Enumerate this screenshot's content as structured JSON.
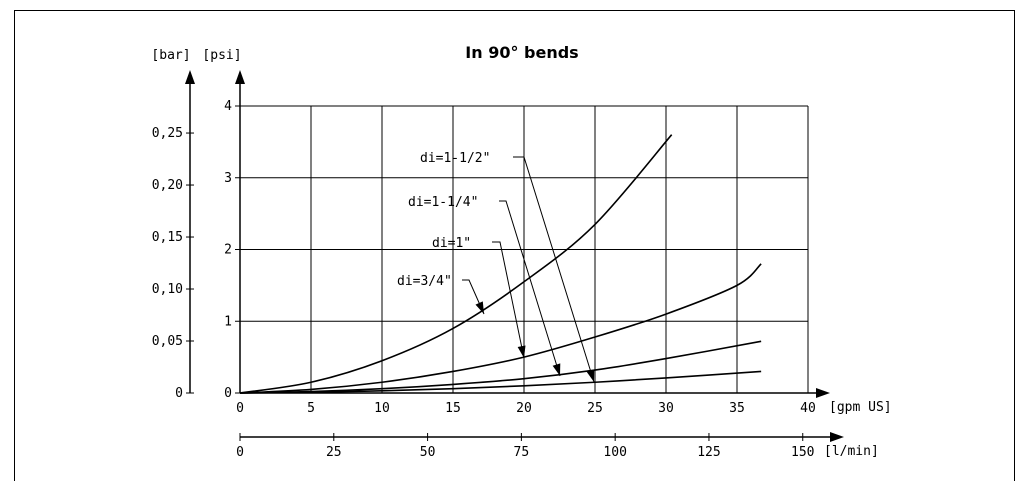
{
  "chart_data": {
    "type": "line",
    "title": "In 90° bends",
    "x_primary": {
      "unit_label": "[gpm US]",
      "ticks": [
        0,
        5,
        10,
        15,
        20,
        25,
        30,
        35,
        40
      ],
      "range": [
        0,
        40
      ]
    },
    "x_secondary": {
      "unit_label": "[l/min]",
      "ticks": [
        0,
        25,
        50,
        75,
        100,
        125,
        150
      ],
      "range": [
        0,
        151.4
      ]
    },
    "y_primary": {
      "unit_label": "[psi]",
      "ticks": [
        0,
        1,
        2,
        3,
        4
      ],
      "range": [
        0,
        4
      ]
    },
    "y_secondary": {
      "unit_label": "[bar]",
      "ticks": [
        "0",
        "0,05",
        "0,10",
        "0,15",
        "0,20",
        "0,25"
      ],
      "range": [
        0,
        0.276
      ]
    },
    "grid": true,
    "series": [
      {
        "name": "di=3/4\"",
        "x": [
          0,
          5,
          10,
          15,
          20,
          25,
          30.4
        ],
        "y": [
          0,
          0.15,
          0.45,
          0.9,
          1.55,
          2.35,
          3.6
        ]
      },
      {
        "name": "di=1\"",
        "x": [
          0,
          5,
          10,
          15,
          20,
          25,
          30,
          35,
          36.7
        ],
        "y": [
          0,
          0.05,
          0.15,
          0.3,
          0.5,
          0.78,
          1.1,
          1.5,
          1.8
        ]
      },
      {
        "name": "di=1-1/4\"",
        "x": [
          0,
          5,
          10,
          15,
          20,
          25,
          30,
          36.7
        ],
        "y": [
          0,
          0.02,
          0.06,
          0.12,
          0.2,
          0.32,
          0.48,
          0.72
        ]
      },
      {
        "name": "di=1-1/2\"",
        "x": [
          0,
          5,
          10,
          15,
          20,
          25,
          30,
          36.7
        ],
        "y": [
          0,
          0.01,
          0.03,
          0.06,
          0.1,
          0.15,
          0.21,
          0.3
        ]
      }
    ],
    "annotations": [
      {
        "text": "di=1-1/2\"",
        "points_to_series": 3
      },
      {
        "text": "di=1-1/4\"",
        "points_to_series": 2
      },
      {
        "text": "di=1\"",
        "points_to_series": 1
      },
      {
        "text": "di=3/4\"",
        "points_to_series": 0
      }
    ]
  }
}
